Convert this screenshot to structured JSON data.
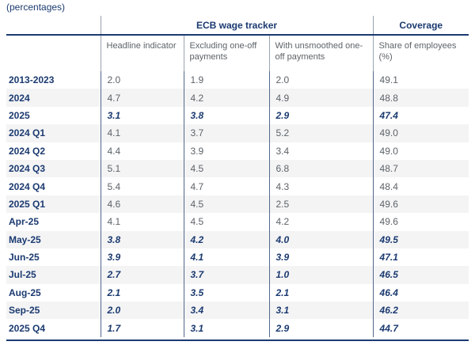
{
  "caption": "(percentages)",
  "colors": {
    "navy": "#1b3a70",
    "text_gray": "#5d6368",
    "stripe": "#f4f4f5",
    "grid_line": "#52688a",
    "header_separator": "#9aa5b1"
  },
  "chart_data": {
    "type": "table",
    "title": "ECB wage tracker",
    "caption": "(percentages)",
    "group_headers": {
      "main": "ECB wage tracker",
      "coverage": "Coverage"
    },
    "column_headers": [
      "Headline indicator",
      "Excluding one-off payments",
      "With unsmoothed one-off payments",
      "Share of employees (%)"
    ],
    "rows": [
      {
        "label": "2013-2023",
        "headline": "2.0",
        "excluding_one_off": "1.9",
        "with_unsmoothed_one_off": "2.0",
        "coverage_share": "49.1",
        "emphasis": false
      },
      {
        "label": "2024",
        "headline": "4.7",
        "excluding_one_off": "4.2",
        "with_unsmoothed_one_off": "4.9",
        "coverage_share": "48.8",
        "emphasis": false
      },
      {
        "label": "2025",
        "headline": "3.1",
        "excluding_one_off": "3.8",
        "with_unsmoothed_one_off": "2.9",
        "coverage_share": "47.4",
        "emphasis": true
      },
      {
        "label": "2024 Q1",
        "headline": "4.1",
        "excluding_one_off": "3.7",
        "with_unsmoothed_one_off": "5.2",
        "coverage_share": "49.0",
        "emphasis": false
      },
      {
        "label": "2024 Q2",
        "headline": "4.4",
        "excluding_one_off": "3.9",
        "with_unsmoothed_one_off": "3.4",
        "coverage_share": "49.0",
        "emphasis": false
      },
      {
        "label": "2024 Q3",
        "headline": "5.1",
        "excluding_one_off": "4.5",
        "with_unsmoothed_one_off": "6.8",
        "coverage_share": "48.7",
        "emphasis": false
      },
      {
        "label": "2024 Q4",
        "headline": "5.4",
        "excluding_one_off": "4.7",
        "with_unsmoothed_one_off": "4.3",
        "coverage_share": "48.4",
        "emphasis": false
      },
      {
        "label": "2025 Q1",
        "headline": "4.6",
        "excluding_one_off": "4.5",
        "with_unsmoothed_one_off": "2.5",
        "coverage_share": "49.6",
        "emphasis": false
      },
      {
        "label": "Apr-25",
        "headline": "4.1",
        "excluding_one_off": "4.5",
        "with_unsmoothed_one_off": "4.2",
        "coverage_share": "49.6",
        "emphasis": false
      },
      {
        "label": "May-25",
        "headline": "3.8",
        "excluding_one_off": "4.2",
        "with_unsmoothed_one_off": "4.0",
        "coverage_share": "49.5",
        "emphasis": true
      },
      {
        "label": "Jun-25",
        "headline": "3.9",
        "excluding_one_off": "4.1",
        "with_unsmoothed_one_off": "3.9",
        "coverage_share": "47.1",
        "emphasis": true
      },
      {
        "label": "Jul-25",
        "headline": "2.7",
        "excluding_one_off": "3.7",
        "with_unsmoothed_one_off": "1.0",
        "coverage_share": "46.5",
        "emphasis": true
      },
      {
        "label": "Aug-25",
        "headline": "2.1",
        "excluding_one_off": "3.5",
        "with_unsmoothed_one_off": "2.1",
        "coverage_share": "46.4",
        "emphasis": true
      },
      {
        "label": "Sep-25",
        "headline": "2.0",
        "excluding_one_off": "3.4",
        "with_unsmoothed_one_off": "3.1",
        "coverage_share": "46.2",
        "emphasis": true
      },
      {
        "label": "2025 Q4",
        "headline": "1.7",
        "excluding_one_off": "3.1",
        "with_unsmoothed_one_off": "2.9",
        "coverage_share": "44.7",
        "emphasis": true
      }
    ]
  }
}
